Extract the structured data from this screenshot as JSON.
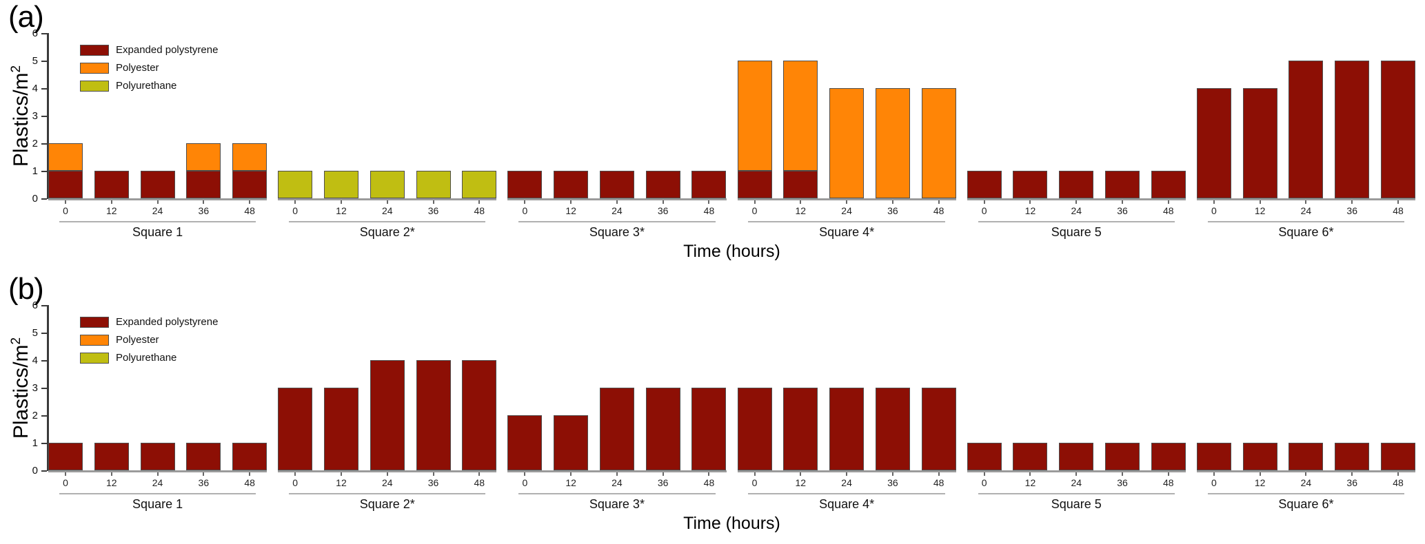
{
  "figure": {
    "panels": [
      "(a)",
      "(b)"
    ]
  },
  "series_defs": [
    {
      "key": "expanded_polystyrene",
      "label": "Expanded polystyrene",
      "color": "#8D0F05"
    },
    {
      "key": "polyester",
      "label": "Polyester",
      "color": "#FF8506"
    },
    {
      "key": "polyurethane",
      "label": "Polyurethane",
      "color": "#C0BE12"
    }
  ],
  "style_colors": {
    "bar_border": "#4d4d4d",
    "y_axis": "#3a3a3a",
    "group_baseline": "#9b9b9b",
    "bracket_line": "#b0b0b0",
    "text": "#111111"
  },
  "chart_data": [
    {
      "type": "bar",
      "stacked": true,
      "panel_label": "(a)",
      "ylabel": "Plastics/m",
      "ylabel_sup": "2",
      "xlabel": "Time (hours)",
      "ylim": [
        0,
        6
      ],
      "yticks": [
        0,
        1,
        2,
        3,
        4,
        5,
        6
      ],
      "x_tick_labels": [
        "0",
        "12",
        "24",
        "36",
        "48"
      ],
      "grid": false,
      "legend_position": "top-left-inside",
      "legend_entries": [
        "Expanded polystyrene",
        "Polyester",
        "Polyurethane"
      ],
      "groups": [
        {
          "label": "Square 1",
          "series": {
            "expanded_polystyrene": [
              1,
              1,
              1,
              1,
              1
            ],
            "polyester": [
              1,
              0,
              0,
              1,
              1
            ],
            "polyurethane": [
              0,
              0,
              0,
              0,
              0
            ]
          }
        },
        {
          "label": "Square 2*",
          "series": {
            "expanded_polystyrene": [
              0,
              0,
              0,
              0,
              0
            ],
            "polyester": [
              0,
              0,
              0,
              0,
              0
            ],
            "polyurethane": [
              1,
              1,
              1,
              1,
              1
            ]
          }
        },
        {
          "label": "Square 3*",
          "series": {
            "expanded_polystyrene": [
              1,
              1,
              1,
              1,
              1
            ],
            "polyester": [
              0,
              0,
              0,
              0,
              0
            ],
            "polyurethane": [
              0,
              0,
              0,
              0,
              0
            ]
          }
        },
        {
          "label": "Square 4*",
          "series": {
            "expanded_polystyrene": [
              1,
              1,
              0,
              0,
              0
            ],
            "polyester": [
              4,
              4,
              4,
              4,
              4
            ],
            "polyurethane": [
              0,
              0,
              0,
              0,
              0
            ]
          }
        },
        {
          "label": "Square 5",
          "series": {
            "expanded_polystyrene": [
              1,
              1,
              1,
              1,
              1
            ],
            "polyester": [
              0,
              0,
              0,
              0,
              0
            ],
            "polyurethane": [
              0,
              0,
              0,
              0,
              0
            ]
          }
        },
        {
          "label": "Square 6*",
          "series": {
            "expanded_polystyrene": [
              4,
              4,
              5,
              5,
              5
            ],
            "polyester": [
              0,
              0,
              0,
              0,
              0
            ],
            "polyurethane": [
              0,
              0,
              0,
              0,
              0
            ]
          }
        }
      ]
    },
    {
      "type": "bar",
      "stacked": true,
      "panel_label": "(b)",
      "ylabel": "Plastics/m",
      "ylabel_sup": "2",
      "xlabel": "Time (hours)",
      "ylim": [
        0,
        6
      ],
      "yticks": [
        0,
        1,
        2,
        3,
        4,
        5,
        6
      ],
      "x_tick_labels": [
        "0",
        "12",
        "24",
        "36",
        "48"
      ],
      "grid": false,
      "legend_position": "top-left-inside",
      "legend_entries": [
        "Expanded polystyrene",
        "Polyester",
        "Polyurethane"
      ],
      "groups": [
        {
          "label": "Square 1",
          "series": {
            "expanded_polystyrene": [
              1,
              1,
              1,
              1,
              1
            ],
            "polyester": [
              0,
              0,
              0,
              0,
              0
            ],
            "polyurethane": [
              0,
              0,
              0,
              0,
              0
            ]
          }
        },
        {
          "label": "Square 2*",
          "series": {
            "expanded_polystyrene": [
              3,
              3,
              4,
              4,
              4
            ],
            "polyester": [
              0,
              0,
              0,
              0,
              0
            ],
            "polyurethane": [
              0,
              0,
              0,
              0,
              0
            ]
          }
        },
        {
          "label": "Square 3*",
          "series": {
            "expanded_polystyrene": [
              2,
              2,
              3,
              3,
              3
            ],
            "polyester": [
              0,
              0,
              0,
              0,
              0
            ],
            "polyurethane": [
              0,
              0,
              0,
              0,
              0
            ]
          }
        },
        {
          "label": "Square 4*",
          "series": {
            "expanded_polystyrene": [
              3,
              3,
              3,
              3,
              3
            ],
            "polyester": [
              0,
              0,
              0,
              0,
              0
            ],
            "polyurethane": [
              0,
              0,
              0,
              0,
              0
            ]
          }
        },
        {
          "label": "Square 5",
          "series": {
            "expanded_polystyrene": [
              1,
              1,
              1,
              1,
              1
            ],
            "polyester": [
              0,
              0,
              0,
              0,
              0
            ],
            "polyurethane": [
              0,
              0,
              0,
              0,
              0
            ]
          }
        },
        {
          "label": "Square 6*",
          "series": {
            "expanded_polystyrene": [
              1,
              1,
              1,
              1,
              1
            ],
            "polyester": [
              0,
              0,
              0,
              0,
              0
            ],
            "polyurethane": [
              0,
              0,
              0,
              0,
              0
            ]
          }
        }
      ]
    }
  ]
}
